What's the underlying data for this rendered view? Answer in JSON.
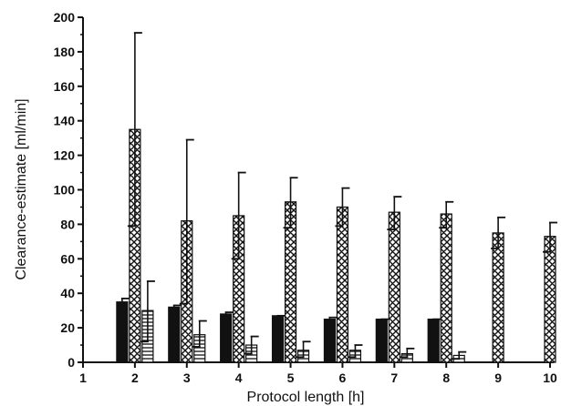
{
  "chart_data": {
    "type": "bar",
    "title": "",
    "xlabel": "Protocol length [h]",
    "ylabel": "Clearance-estimate [ml/min]",
    "xlim": [
      1,
      10
    ],
    "ylim": [
      0,
      200
    ],
    "x_ticks": [
      "1",
      "2",
      "3",
      "4",
      "5",
      "6",
      "7",
      "8",
      "9",
      "10"
    ],
    "y_ticks": [
      "0",
      "20",
      "40",
      "60",
      "80",
      "100",
      "120",
      "140",
      "160",
      "180",
      "200"
    ],
    "categories": [
      "2",
      "3",
      "4",
      "5",
      "6",
      "7",
      "8",
      "9",
      "10"
    ],
    "series": [
      {
        "pattern": "solid",
        "color": "#111111",
        "values": [
          35,
          32,
          28,
          27,
          25,
          25,
          25,
          null,
          null
        ],
        "err_upper": [
          37,
          33,
          29,
          27,
          26,
          25,
          25,
          null,
          null
        ],
        "err_lower": [
          null,
          null,
          null,
          null,
          null,
          null,
          null,
          null,
          null
        ]
      },
      {
        "pattern": "crosshatch",
        "color": "#111111",
        "values": [
          135,
          82,
          85,
          93,
          90,
          87,
          86,
          75,
          73
        ],
        "err_upper": [
          191,
          129,
          110,
          107,
          101,
          96,
          93,
          84,
          81
        ],
        "err_lower": [
          79,
          34,
          60,
          78,
          79,
          77,
          78,
          66,
          64
        ]
      },
      {
        "pattern": "horizontal-lines",
        "color": "#111111",
        "values": [
          30,
          16,
          10,
          7,
          7,
          5,
          4,
          null,
          null
        ],
        "err_upper": [
          47,
          24,
          15,
          12,
          10,
          8,
          6,
          null,
          null
        ],
        "err_lower": [
          12,
          9,
          5,
          3,
          3,
          3,
          2,
          null,
          null
        ]
      }
    ],
    "grid": false,
    "legend": "none"
  }
}
